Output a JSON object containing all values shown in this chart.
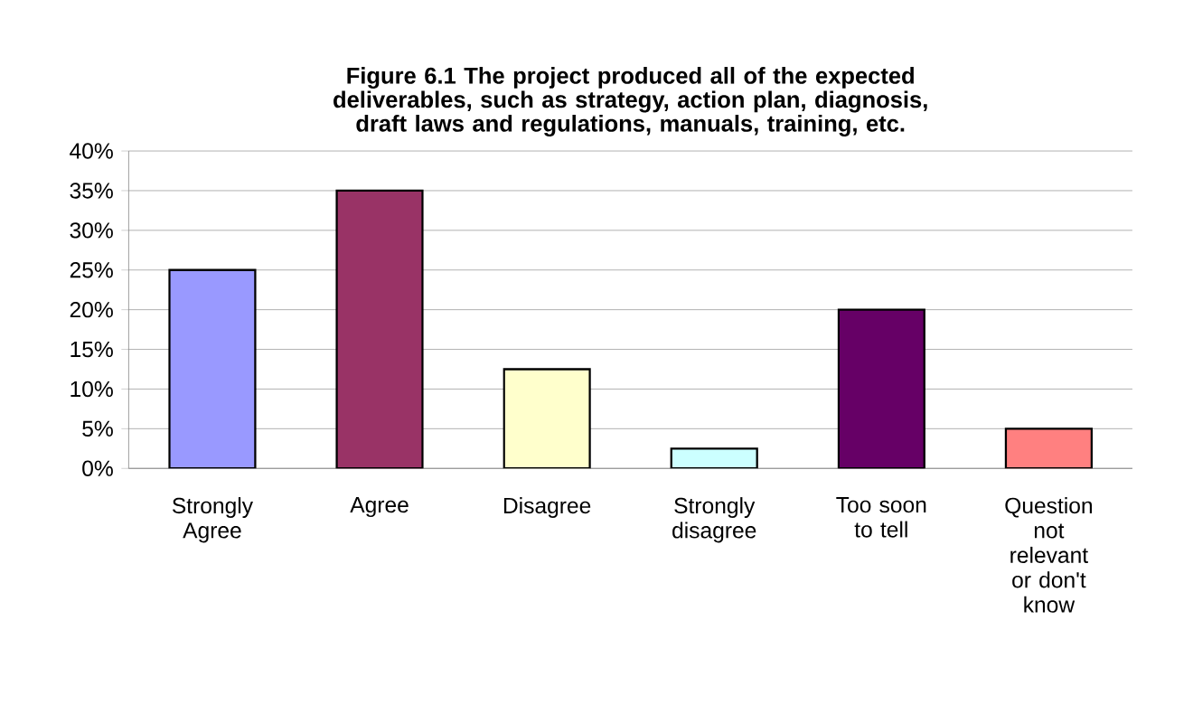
{
  "chart_data": {
    "type": "bar",
    "title": "Figure 6.1  The project produced all of the expected deliverables, such as strategy, action plan, diagnosis, draft laws and regulations, manuals, training, etc.",
    "categories": [
      "Strongly Agree",
      "Agree",
      "Disagree",
      "Strongly disagree",
      "Too soon to tell",
      "Question not relevant or don't know"
    ],
    "values": [
      25,
      35,
      12.5,
      2.5,
      20,
      5
    ],
    "colors": [
      "#9999ff",
      "#993366",
      "#ffffcc",
      "#ccffff",
      "#660066",
      "#ff8080"
    ],
    "ylim": [
      0,
      40
    ],
    "yticks": [
      {
        "value": 0,
        "label": "0%"
      },
      {
        "value": 5,
        "label": "5%"
      },
      {
        "value": 10,
        "label": "10%"
      },
      {
        "value": 15,
        "label": "15%"
      },
      {
        "value": 20,
        "label": "20%"
      },
      {
        "value": 25,
        "label": "25%"
      },
      {
        "value": 30,
        "label": "30%"
      },
      {
        "value": 35,
        "label": "35%"
      },
      {
        "value": 40,
        "label": "40%"
      }
    ],
    "grid": "y"
  }
}
